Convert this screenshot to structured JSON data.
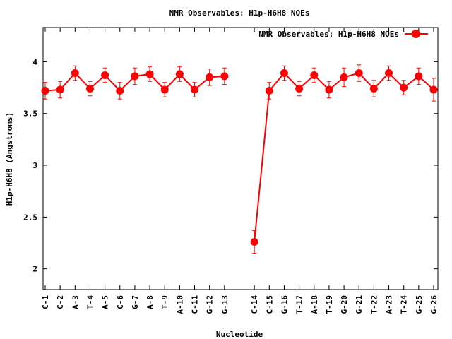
{
  "chart_data": {
    "type": "line",
    "title": "NMR Observables: H1p-H6H8 NOEs",
    "xlabel": "Nucleotide",
    "ylabel": "H1p-H6H8 (Angstroms)",
    "ylim": [
      1.8,
      4.33
    ],
    "yticks": [
      2,
      2.5,
      3,
      3.5,
      4
    ],
    "ytick_labels": [
      "2",
      "2.5",
      "3",
      "3.5",
      "4"
    ],
    "grid": false,
    "legend_position": "top-right",
    "color": "#ff0000",
    "categories": [
      "C-1",
      "C-2",
      "A-3",
      "T-4",
      "A-5",
      "C-6",
      "G-7",
      "A-8",
      "T-9",
      "A-10",
      "C-11",
      "G-12",
      "G-13",
      "",
      "C-14",
      "C-15",
      "G-16",
      "T-17",
      "A-18",
      "T-19",
      "G-20",
      "G-21",
      "T-22",
      "A-23",
      "T-24",
      "G-25",
      "G-26"
    ],
    "series": [
      {
        "name": "NMR Observables: H1p-H6H8 NOEs",
        "values": [
          3.72,
          3.73,
          3.89,
          3.74,
          3.87,
          3.72,
          3.86,
          3.88,
          3.73,
          3.88,
          3.73,
          3.85,
          3.86,
          null,
          2.26,
          3.72,
          3.89,
          3.74,
          3.87,
          3.73,
          3.85,
          3.89,
          3.74,
          3.89,
          3.75,
          3.86,
          3.73
        ],
        "errors": [
          0.08,
          0.08,
          0.07,
          0.07,
          0.07,
          0.08,
          0.08,
          0.07,
          0.07,
          0.07,
          0.07,
          0.08,
          0.08,
          null,
          0.11,
          0.08,
          0.07,
          0.07,
          0.07,
          0.08,
          0.09,
          0.08,
          0.08,
          0.07,
          0.07,
          0.08,
          0.11
        ]
      }
    ]
  }
}
